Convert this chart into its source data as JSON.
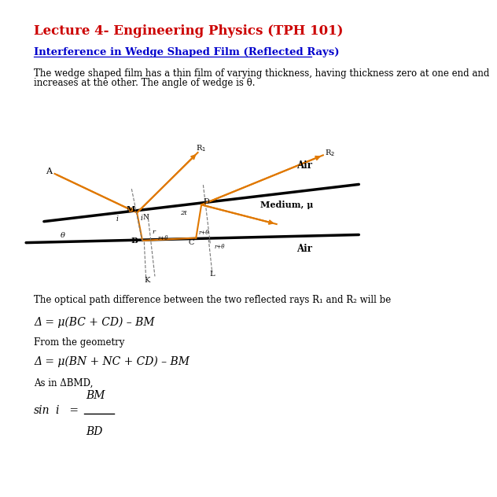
{
  "title": "Lecture 4- Engineering Physics (TPH 101)",
  "title_color": "#cc0000",
  "subtitle": "Interference in Wedge Shaped Film (Reflected Rays)",
  "subtitle_color": "#0000cc",
  "body_text1": "The wedge shaped film has a thin film of varying thickness, having thickness zero at one end and",
  "body_text2": "increases at the other. The angle of wedge is θ.",
  "optical_text": "The optical path difference between the two reflected rays R₁ and R₂ will be",
  "eq1": "Δ = μ(BC + CD) – BM",
  "eq2_label": "From the geometry",
  "eq2": "Δ = μ(BN + NC + CD) – BM",
  "eq3_label": "As in ΔBMD,",
  "diagram_color_orange": "#e07800",
  "diagram_color_black": "#000000",
  "diagram_color_gray": "#777777",
  "bg_color": "#ffffff"
}
